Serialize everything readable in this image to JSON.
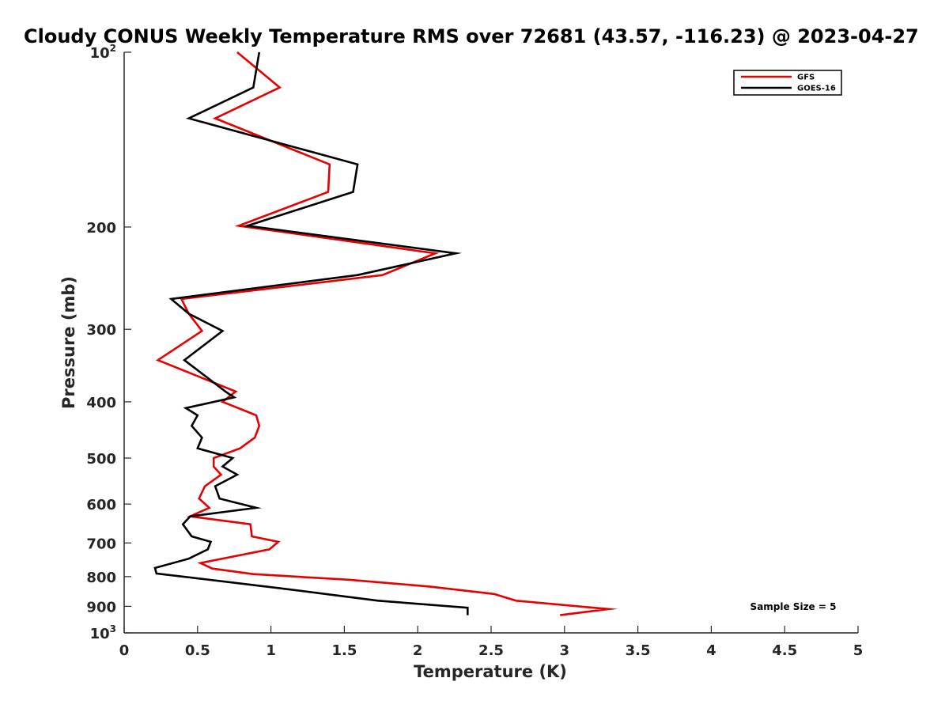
{
  "chart_data": {
    "type": "line",
    "title": "Cloudy CONUS Weekly Temperature RMS over 72681 (43.57, -116.23) @ 2023-04-27",
    "xlabel": "Temperature (K)",
    "ylabel": "Pressure (mb)",
    "xlim": [
      0,
      5
    ],
    "ylim": [
      100,
      1000
    ],
    "y_scale": "log",
    "y_reversed": true,
    "grid": false,
    "legend_position": "top-right",
    "x_ticks": [
      0,
      0.5,
      1,
      1.5,
      2,
      2.5,
      3,
      3.5,
      4,
      4.5,
      5
    ],
    "x_tick_labels": [
      "0",
      "0.5",
      "1",
      "1.5",
      "2",
      "2.5",
      "3",
      "3.5",
      "4",
      "4.5",
      "5"
    ],
    "y_ticks": [
      100,
      200,
      300,
      400,
      500,
      600,
      700,
      800,
      900,
      1000
    ],
    "y_tick_labels": [
      {
        "base": "10",
        "sup": "2"
      },
      {
        "base": "200",
        "sup": ""
      },
      {
        "base": "300",
        "sup": ""
      },
      {
        "base": "400",
        "sup": ""
      },
      {
        "base": "500",
        "sup": ""
      },
      {
        "base": "600",
        "sup": ""
      },
      {
        "base": "700",
        "sup": ""
      },
      {
        "base": "800",
        "sup": ""
      },
      {
        "base": "900",
        "sup": ""
      },
      {
        "base": "10",
        "sup": "3"
      }
    ],
    "series": [
      {
        "name": "GFS",
        "color": "#e60000",
        "points": [
          [
            0.77,
            100
          ],
          [
            1.06,
            115
          ],
          [
            0.62,
            130
          ],
          [
            1.4,
            156
          ],
          [
            1.39,
            174
          ],
          [
            0.78,
            199
          ],
          [
            2.12,
            222
          ],
          [
            1.76,
            242
          ],
          [
            0.39,
            266
          ],
          [
            0.44,
            282
          ],
          [
            0.53,
            302
          ],
          [
            0.23,
            339
          ],
          [
            0.76,
            384
          ],
          [
            0.67,
            400
          ],
          [
            0.9,
            422
          ],
          [
            0.92,
            440
          ],
          [
            0.89,
            461
          ],
          [
            0.79,
            481
          ],
          [
            0.61,
            500
          ],
          [
            0.61,
            517
          ],
          [
            0.66,
            534
          ],
          [
            0.55,
            559
          ],
          [
            0.51,
            587
          ],
          [
            0.58,
            609
          ],
          [
            0.45,
            630
          ],
          [
            0.86,
            650
          ],
          [
            0.87,
            682
          ],
          [
            1.05,
            697
          ],
          [
            0.99,
            718
          ],
          [
            0.52,
            758
          ],
          [
            0.6,
            775
          ],
          [
            0.88,
            792
          ],
          [
            1.53,
            810
          ],
          [
            2.08,
            832
          ],
          [
            2.52,
            857
          ],
          [
            2.67,
            880
          ],
          [
            3.3,
            910
          ],
          [
            2.97,
            932
          ]
        ]
      },
      {
        "name": "GOES-16",
        "color": "#000000",
        "points": [
          [
            0.92,
            100
          ],
          [
            0.88,
            115
          ],
          [
            0.44,
            130
          ],
          [
            1.59,
            156
          ],
          [
            1.56,
            174
          ],
          [
            0.84,
            199
          ],
          [
            2.26,
            222
          ],
          [
            1.59,
            242
          ],
          [
            0.32,
            266
          ],
          [
            0.44,
            282
          ],
          [
            0.67,
            302
          ],
          [
            0.41,
            339
          ],
          [
            0.69,
            384
          ],
          [
            0.75,
            393
          ],
          [
            0.42,
            410
          ],
          [
            0.5,
            422
          ],
          [
            0.46,
            440
          ],
          [
            0.53,
            461
          ],
          [
            0.5,
            481
          ],
          [
            0.74,
            500
          ],
          [
            0.67,
            517
          ],
          [
            0.77,
            534
          ],
          [
            0.62,
            559
          ],
          [
            0.65,
            587
          ],
          [
            0.9,
            609
          ],
          [
            0.45,
            630
          ],
          [
            0.4,
            650
          ],
          [
            0.46,
            682
          ],
          [
            0.59,
            697
          ],
          [
            0.57,
            718
          ],
          [
            0.44,
            745
          ],
          [
            0.21,
            773
          ],
          [
            0.22,
            790
          ],
          [
            1.05,
            837
          ],
          [
            1.73,
            880
          ],
          [
            2.34,
            905
          ],
          [
            2.34,
            932
          ]
        ]
      }
    ],
    "annotations": [
      "Sample Size = 5"
    ]
  }
}
